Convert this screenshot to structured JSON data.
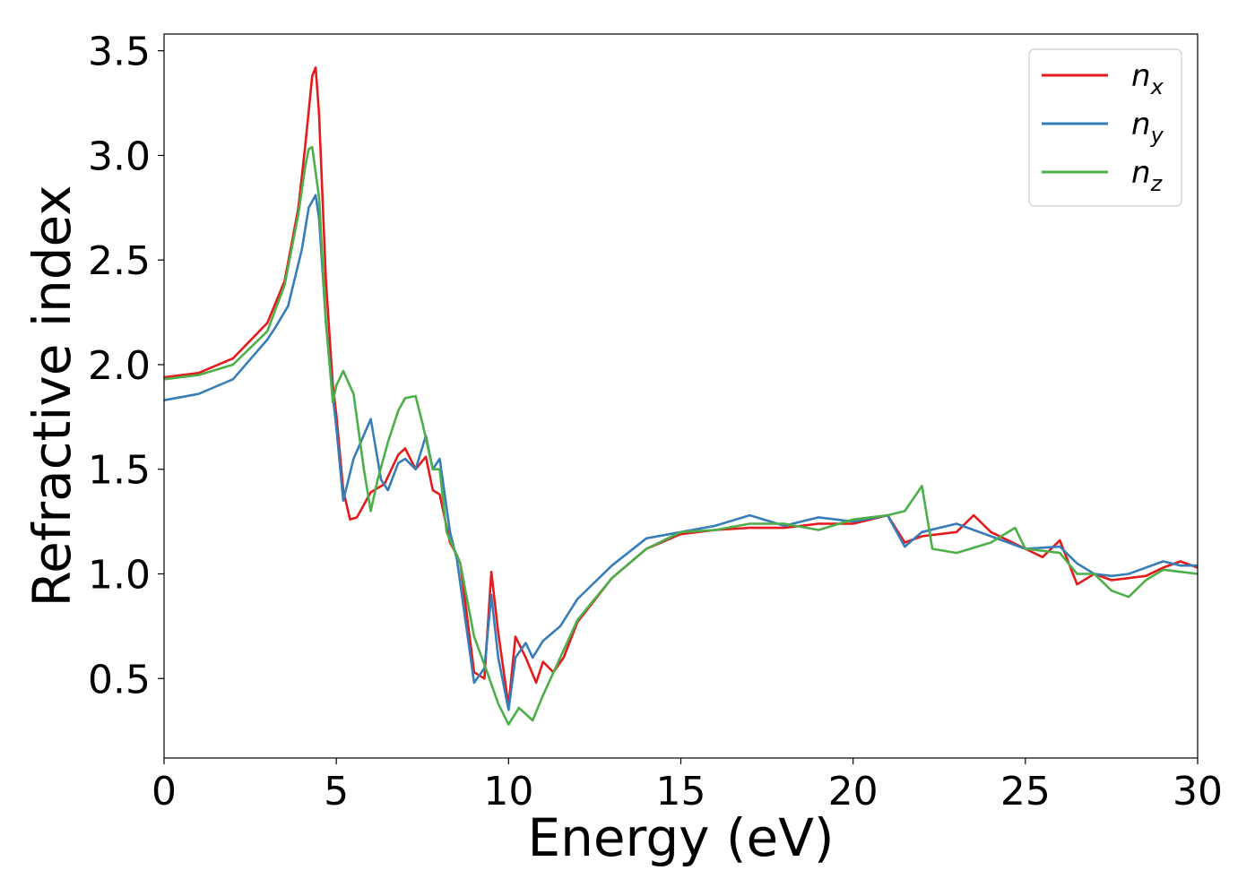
{
  "chart_data": {
    "type": "line",
    "xlabel": "Energy (eV)",
    "ylabel": "Refractive index",
    "xlim": [
      0,
      30
    ],
    "ylim": [
      0.12,
      3.58
    ],
    "xticks": [
      "0",
      "5",
      "10",
      "15",
      "20",
      "25",
      "30"
    ],
    "xtick_values": [
      0,
      5,
      10,
      15,
      20,
      25,
      30
    ],
    "yticks": [
      "0.5",
      "1.0",
      "1.5",
      "2.0",
      "2.5",
      "3.0",
      "3.5"
    ],
    "ytick_values": [
      0.5,
      1.0,
      1.5,
      2.0,
      2.5,
      3.0,
      3.5
    ],
    "grid": false,
    "legend_position": "top-right",
    "series": [
      {
        "name": "n",
        "subscript": "x",
        "color": "#e41a1c",
        "x": [
          0,
          1,
          2,
          3,
          3.5,
          3.9,
          4.1,
          4.3,
          4.4,
          4.5,
          4.7,
          4.9,
          5.0,
          5.2,
          5.4,
          5.6,
          6.0,
          6.4,
          6.8,
          7.0,
          7.3,
          7.6,
          7.8,
          8.0,
          8.3,
          8.5,
          8.6,
          9.0,
          9.3,
          9.5,
          9.7,
          10.0,
          10.2,
          10.5,
          10.8,
          11.0,
          11.3,
          11.6,
          12.0,
          13.0,
          14.0,
          15.0,
          16.0,
          17.0,
          18.0,
          19.0,
          20.0,
          21.0,
          21.5,
          22.0,
          23.0,
          23.5,
          24.0,
          25.0,
          25.5,
          26.0,
          26.5,
          27.0,
          27.5,
          28.0,
          28.5,
          29.0,
          29.5,
          30.0
        ],
        "values": [
          1.94,
          1.96,
          2.03,
          2.2,
          2.4,
          2.75,
          3.05,
          3.38,
          3.42,
          3.2,
          2.4,
          1.9,
          1.76,
          1.4,
          1.26,
          1.27,
          1.39,
          1.43,
          1.57,
          1.6,
          1.5,
          1.56,
          1.4,
          1.38,
          1.15,
          1.09,
          1.05,
          0.53,
          0.5,
          1.01,
          0.72,
          0.37,
          0.7,
          0.6,
          0.48,
          0.58,
          0.53,
          0.6,
          0.77,
          0.98,
          1.12,
          1.19,
          1.21,
          1.22,
          1.22,
          1.24,
          1.24,
          1.28,
          1.15,
          1.18,
          1.2,
          1.28,
          1.2,
          1.12,
          1.08,
          1.16,
          0.95,
          1.0,
          0.97,
          0.98,
          0.99,
          1.03,
          1.06,
          1.03
        ]
      },
      {
        "name": "n",
        "subscript": "y",
        "color": "#377eb8",
        "x": [
          0,
          1,
          2,
          3,
          3.2,
          3.6,
          4.0,
          4.2,
          4.4,
          4.5,
          4.7,
          4.9,
          5.0,
          5.2,
          5.5,
          6.0,
          6.3,
          6.5,
          6.8,
          7.0,
          7.3,
          7.6,
          7.8,
          8.0,
          8.3,
          8.5,
          9.0,
          9.3,
          9.5,
          9.7,
          10.0,
          10.2,
          10.5,
          10.7,
          11.0,
          11.5,
          12.0,
          13.0,
          14.0,
          15.0,
          16.0,
          17.0,
          18.0,
          19.0,
          20.0,
          21.0,
          21.5,
          22.0,
          23.0,
          24.0,
          25.0,
          26.0,
          26.5,
          27.0,
          27.5,
          28.0,
          28.5,
          29.0,
          29.5,
          30.0
        ],
        "values": [
          1.83,
          1.86,
          1.93,
          2.12,
          2.17,
          2.28,
          2.55,
          2.75,
          2.81,
          2.7,
          2.2,
          1.85,
          1.7,
          1.35,
          1.55,
          1.74,
          1.45,
          1.4,
          1.53,
          1.55,
          1.5,
          1.66,
          1.5,
          1.55,
          1.2,
          1.07,
          0.48,
          0.55,
          0.9,
          0.6,
          0.35,
          0.6,
          0.67,
          0.6,
          0.68,
          0.75,
          0.88,
          1.04,
          1.17,
          1.2,
          1.23,
          1.28,
          1.23,
          1.27,
          1.25,
          1.28,
          1.13,
          1.2,
          1.24,
          1.18,
          1.12,
          1.13,
          1.05,
          1.0,
          0.99,
          1.0,
          1.03,
          1.06,
          1.04,
          1.04
        ]
      },
      {
        "name": "n",
        "subscript": "z",
        "color": "#4daf4a",
        "x": [
          0,
          1,
          2,
          3,
          3.5,
          3.9,
          4.1,
          4.2,
          4.3,
          4.5,
          4.7,
          4.9,
          5.0,
          5.2,
          5.5,
          5.8,
          6.0,
          6.2,
          6.5,
          6.8,
          7.0,
          7.3,
          7.5,
          7.8,
          8.0,
          8.2,
          8.6,
          9.0,
          9.4,
          9.7,
          10.0,
          10.3,
          10.7,
          11.0,
          11.5,
          12.0,
          13.0,
          14.0,
          15.0,
          16.0,
          17.0,
          18.0,
          19.0,
          20.0,
          21.0,
          21.5,
          22.0,
          22.3,
          23.0,
          24.0,
          24.7,
          25.0,
          26.0,
          26.5,
          27.0,
          27.5,
          28.0,
          28.5,
          29.0,
          29.5,
          30.0
        ],
        "values": [
          1.93,
          1.95,
          2.0,
          2.16,
          2.38,
          2.72,
          2.95,
          3.03,
          3.04,
          2.8,
          2.2,
          1.82,
          1.9,
          1.97,
          1.86,
          1.5,
          1.3,
          1.45,
          1.63,
          1.78,
          1.84,
          1.85,
          1.72,
          1.5,
          1.5,
          1.2,
          1.05,
          0.7,
          0.52,
          0.38,
          0.28,
          0.36,
          0.3,
          0.42,
          0.6,
          0.78,
          0.98,
          1.12,
          1.2,
          1.21,
          1.24,
          1.24,
          1.21,
          1.26,
          1.28,
          1.3,
          1.42,
          1.12,
          1.1,
          1.15,
          1.22,
          1.12,
          1.1,
          1.0,
          1.0,
          0.92,
          0.89,
          0.97,
          1.02,
          1.01,
          1.0
        ]
      }
    ]
  }
}
